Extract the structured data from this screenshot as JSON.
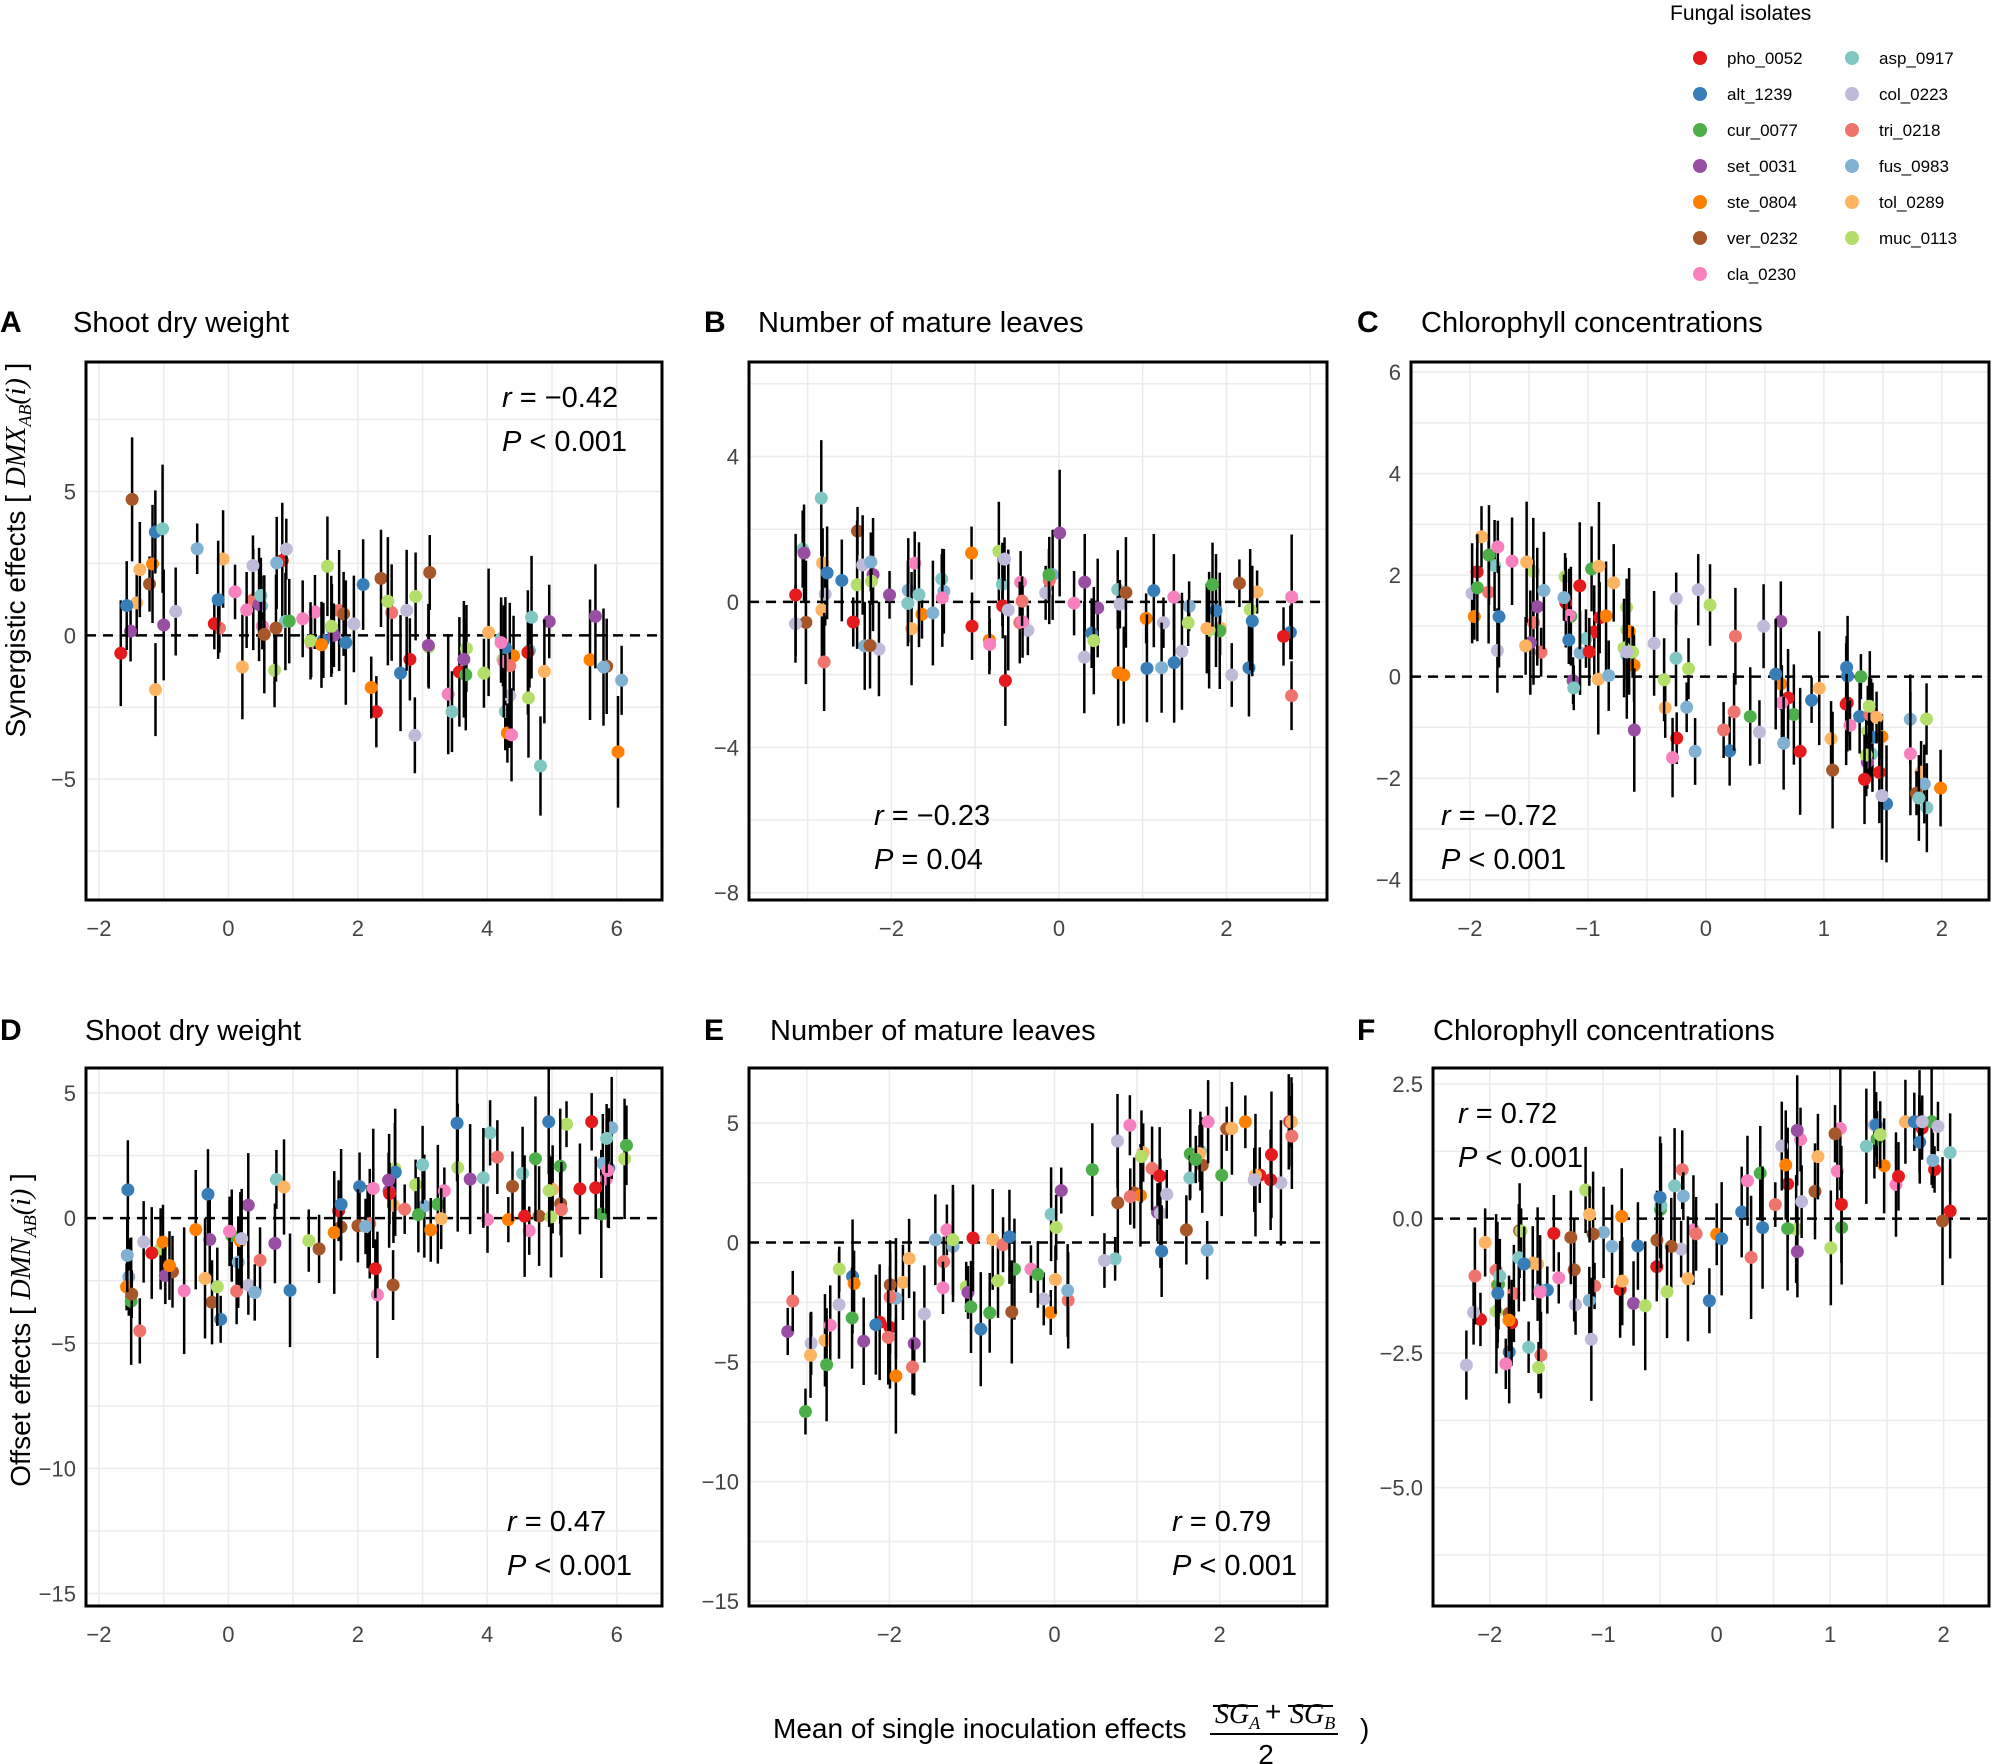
{
  "xlabel": {
    "prefix": "Mean of single inoculation effects",
    "frac_num_a": "SG",
    "frac_num_a_sub": "A",
    "plus": "+",
    "frac_num_b": "SG",
    "frac_num_b_sub": "B",
    "frac_den": "2",
    "close": ")"
  },
  "row_labels": {
    "top": "Synergistic effects [",
    "top_math": "DMX",
    "top_sub": "AB",
    "top_arg": "(i)",
    "top_close": "]",
    "bottom": "Offset effects [",
    "bottom_math": "DMN",
    "bottom_sub": "AB",
    "bottom_arg": "(i)",
    "bottom_close": "]"
  },
  "legend": {
    "title": "Fungal isolates",
    "items": [
      {
        "label": "pho_0052",
        "color": "#e41a1c"
      },
      {
        "label": "alt_1239",
        "color": "#377eb8"
      },
      {
        "label": "cur_0077",
        "color": "#4daf4a"
      },
      {
        "label": "set_0031",
        "color": "#984ea3"
      },
      {
        "label": "ste_0804",
        "color": "#ff7f00"
      },
      {
        "label": "ver_0232",
        "color": "#a65628"
      },
      {
        "label": "cla_0230",
        "color": "#f781bf"
      },
      {
        "label": "asp_0917",
        "color": "#80c7c3"
      },
      {
        "label": "col_0223",
        "color": "#bebada"
      },
      {
        "label": "tri_0218",
        "color": "#f0746e"
      },
      {
        "label": "fus_0983",
        "color": "#80b1d3"
      },
      {
        "label": "tol_0289",
        "color": "#fdb462"
      },
      {
        "label": "muc_0113",
        "color": "#b3de69"
      }
    ]
  },
  "chart_data": [
    {
      "type": "scatter",
      "panel": "A",
      "title": "Shoot dry weight",
      "r_label": "r",
      "r_value": "= −0.42",
      "p_label": "P",
      "p_value": "< 0.001",
      "xlim": [
        -2.2,
        6.7
      ],
      "ylim": [
        -9.2,
        9.5
      ],
      "xticks": [
        -2,
        0,
        2,
        4,
        6
      ],
      "yticks": [
        -5,
        0,
        5
      ],
      "xtick_labels": [
        "−2",
        "0",
        "2",
        "4",
        "6"
      ],
      "ytick_labels": [
        "−5",
        "0",
        "5"
      ],
      "hline": 0,
      "stats_pos": "top-right",
      "seed": 11,
      "n_points": 95,
      "slope": -0.42
    },
    {
      "type": "scatter",
      "panel": "B",
      "title": "Number of mature leaves",
      "r_label": "r",
      "r_value": "= −0.23",
      "p_label": "P",
      "p_value": "= 0.04",
      "xlim": [
        -3.7,
        3.2
      ],
      "ylim": [
        -8.2,
        6.6
      ],
      "xticks": [
        -2,
        0,
        2
      ],
      "yticks": [
        -8,
        -4,
        0,
        4
      ],
      "xtick_labels": [
        "−2",
        "0",
        "2"
      ],
      "ytick_labels": [
        "−8",
        "−4",
        "0",
        "4"
      ],
      "hline": 0,
      "stats_pos": "bottom-left",
      "seed": 23,
      "n_points": 90,
      "slope": -0.23
    },
    {
      "type": "scatter",
      "panel": "C",
      "title": "Chlorophyll concentrations",
      "r_label": "r",
      "r_value": "= −0.72",
      "p_label": "P",
      "p_value": "< 0.001",
      "xlim": [
        -2.5,
        2.4
      ],
      "ylim": [
        -4.4,
        6.2
      ],
      "xticks": [
        -2,
        -1,
        0,
        1,
        2
      ],
      "yticks": [
        -4,
        -2,
        0,
        2,
        4,
        6
      ],
      "xtick_labels": [
        "−2",
        "−1",
        "0",
        "1",
        "2"
      ],
      "ytick_labels": [
        "−4",
        "−2",
        "0",
        "2",
        "4",
        "6"
      ],
      "hline": 0,
      "stats_pos": "bottom-left",
      "seed": 37,
      "n_points": 110,
      "slope": -0.72
    },
    {
      "type": "scatter",
      "panel": "D",
      "title": "Shoot dry weight",
      "r_label": "r",
      "r_value": "= 0.47",
      "p_label": "P",
      "p_value": "< 0.001",
      "xlim": [
        -2.2,
        6.7
      ],
      "ylim": [
        -15.5,
        6.0
      ],
      "xticks": [
        -2,
        0,
        2,
        4,
        6
      ],
      "yticks": [
        -15,
        -10,
        -5,
        0,
        5
      ],
      "xtick_labels": [
        "−2",
        "0",
        "2",
        "4",
        "6"
      ],
      "ytick_labels": [
        "−15",
        "−10",
        "−5",
        "0",
        "5"
      ],
      "hline": 0,
      "stats_pos": "bottom-right",
      "seed": 41,
      "n_points": 100,
      "slope": 0.47
    },
    {
      "type": "scatter",
      "panel": "E",
      "title": "Number of mature leaves",
      "r_label": "r",
      "r_value": "= 0.79",
      "p_label": "P",
      "p_value": "< 0.001",
      "xlim": [
        -3.7,
        3.3
      ],
      "ylim": [
        -15.2,
        7.3
      ],
      "xticks": [
        -2,
        0,
        2
      ],
      "yticks": [
        -15,
        -10,
        -5,
        0,
        5
      ],
      "xtick_labels": [
        "−2",
        "0",
        "2"
      ],
      "ytick_labels": [
        "−15",
        "−10",
        "−5",
        "0",
        "5"
      ],
      "hline": 0,
      "stats_pos": "bottom-right",
      "seed": 53,
      "n_points": 95,
      "slope": 0.79
    },
    {
      "type": "scatter",
      "panel": "F",
      "title": "Chlorophyll concentrations",
      "r_label": "r",
      "r_value": "= 0.72",
      "p_label": "P",
      "p_value": "< 0.001",
      "xlim": [
        -2.5,
        2.4
      ],
      "ylim": [
        -7.2,
        2.8
      ],
      "xticks": [
        -2,
        -1,
        0,
        1,
        2
      ],
      "yticks": [
        -5.0,
        -2.5,
        0.0,
        2.5
      ],
      "xtick_labels": [
        "−2",
        "−1",
        "0",
        "1",
        "2"
      ],
      "ytick_labels": [
        "−5.0",
        "−2.5",
        "0.0",
        "2.5"
      ],
      "hline": 0,
      "stats_pos": "top-left",
      "seed": 67,
      "n_points": 110,
      "slope": 0.72
    }
  ]
}
